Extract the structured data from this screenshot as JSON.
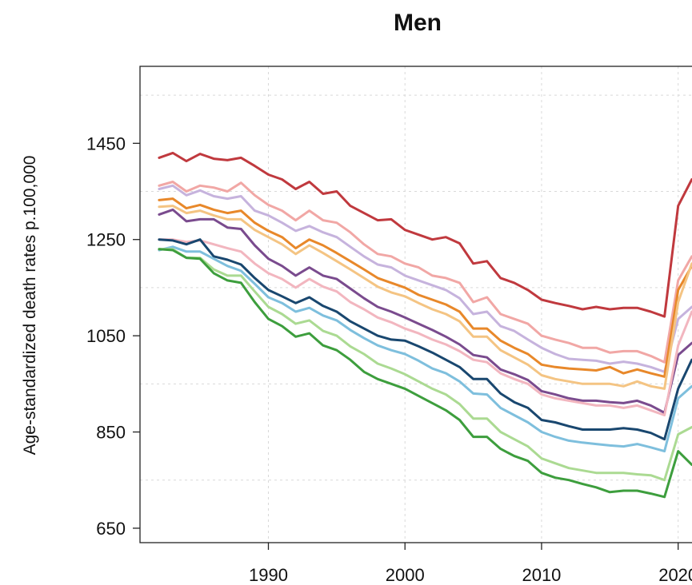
{
  "chart_data": {
    "type": "line",
    "title": "Men",
    "xlabel": "",
    "ylabel": "Age-standardized death rates p.100,000",
    "xlim": [
      1980.6,
      2021.6
    ],
    "ylim": [
      620,
      1610
    ],
    "xticks": [
      1990,
      2000,
      2010,
      2020
    ],
    "yticks": [
      650,
      850,
      1050,
      1250,
      1450
    ],
    "xtick_labels": [
      "1990",
      "2000",
      "2010",
      "2020"
    ],
    "ytick_labels": [
      "650",
      "850",
      "1050",
      "1250",
      "1450"
    ],
    "grid": true,
    "x": [
      1982,
      1983,
      1984,
      1985,
      1986,
      1987,
      1988,
      1989,
      1990,
      1991,
      1992,
      1993,
      1994,
      1995,
      1996,
      1997,
      1998,
      1999,
      2000,
      2001,
      2002,
      2003,
      2004,
      2005,
      2006,
      2007,
      2008,
      2009,
      2010,
      2011,
      2012,
      2013,
      2014,
      2015,
      2016,
      2017,
      2018,
      2019,
      2020,
      2021
    ],
    "series": [
      {
        "color": "#c0393e",
        "values": [
          1420,
          1430,
          1413,
          1428,
          1418,
          1415,
          1420,
          1403,
          1385,
          1375,
          1355,
          1370,
          1345,
          1350,
          1320,
          1305,
          1290,
          1292,
          1270,
          1260,
          1250,
          1255,
          1242,
          1200,
          1205,
          1170,
          1160,
          1145,
          1125,
          1118,
          1112,
          1105,
          1110,
          1105,
          1108,
          1108,
          1100,
          1090,
          1320,
          1375
        ]
      },
      {
        "color": "#f1a7a5",
        "values": [
          1362,
          1370,
          1350,
          1362,
          1358,
          1350,
          1368,
          1342,
          1322,
          1310,
          1290,
          1310,
          1290,
          1285,
          1265,
          1240,
          1220,
          1215,
          1200,
          1192,
          1175,
          1170,
          1160,
          1120,
          1130,
          1095,
          1085,
          1075,
          1050,
          1042,
          1035,
          1025,
          1025,
          1015,
          1018,
          1018,
          1008,
          995,
          1165,
          1215
        ]
      },
      {
        "color": "#c6b3dd",
        "values": [
          1355,
          1362,
          1342,
          1352,
          1340,
          1335,
          1340,
          1310,
          1300,
          1285,
          1268,
          1278,
          1265,
          1255,
          1235,
          1215,
          1198,
          1192,
          1175,
          1165,
          1155,
          1145,
          1128,
          1095,
          1100,
          1070,
          1060,
          1042,
          1025,
          1012,
          1002,
          1000,
          998,
          992,
          996,
          992,
          985,
          975,
          1085,
          1110
        ]
      },
      {
        "color": "#e8882a",
        "values": [
          1332,
          1335,
          1315,
          1322,
          1312,
          1305,
          1310,
          1285,
          1268,
          1255,
          1232,
          1250,
          1238,
          1222,
          1205,
          1188,
          1170,
          1160,
          1150,
          1135,
          1125,
          1115,
          1100,
          1065,
          1065,
          1040,
          1025,
          1012,
          990,
          985,
          982,
          980,
          978,
          985,
          972,
          980,
          972,
          965,
          1145,
          1195
        ]
      },
      {
        "color": "#f4c483",
        "values": [
          1318,
          1320,
          1305,
          1310,
          1300,
          1292,
          1292,
          1270,
          1255,
          1240,
          1220,
          1238,
          1222,
          1205,
          1188,
          1170,
          1152,
          1140,
          1132,
          1118,
          1105,
          1095,
          1080,
          1048,
          1048,
          1020,
          1005,
          990,
          968,
          960,
          955,
          950,
          950,
          950,
          945,
          955,
          945,
          940,
          1120,
          1200
        ]
      },
      {
        "color": "#7a4b8e",
        "values": [
          1302,
          1312,
          1288,
          1292,
          1292,
          1275,
          1272,
          1238,
          1210,
          1195,
          1175,
          1192,
          1175,
          1168,
          1148,
          1128,
          1110,
          1100,
          1088,
          1075,
          1062,
          1048,
          1032,
          1010,
          1005,
          980,
          970,
          958,
          935,
          928,
          920,
          915,
          915,
          912,
          910,
          915,
          905,
          890,
          1010,
          1035
        ]
      },
      {
        "color": "#f2b6bf",
        "values": [
          1250,
          1250,
          1245,
          1248,
          1240,
          1232,
          1225,
          1200,
          1180,
          1168,
          1150,
          1168,
          1152,
          1142,
          1120,
          1105,
          1088,
          1078,
          1065,
          1055,
          1042,
          1032,
          1018,
          1000,
          995,
          972,
          960,
          950,
          928,
          920,
          915,
          910,
          905,
          905,
          900,
          905,
          895,
          885,
          1030,
          1100
        ]
      },
      {
        "color": "#19476f",
        "values": [
          1250,
          1248,
          1240,
          1250,
          1215,
          1208,
          1198,
          1170,
          1145,
          1132,
          1118,
          1130,
          1112,
          1100,
          1080,
          1065,
          1050,
          1042,
          1040,
          1028,
          1015,
          1000,
          985,
          960,
          960,
          930,
          912,
          900,
          875,
          870,
          862,
          855,
          855,
          855,
          858,
          855,
          848,
          835,
          940,
          1000
        ]
      },
      {
        "color": "#7ebfdd",
        "values": [
          1228,
          1235,
          1225,
          1225,
          1210,
          1195,
          1185,
          1158,
          1130,
          1118,
          1100,
          1108,
          1092,
          1082,
          1062,
          1045,
          1030,
          1020,
          1012,
          998,
          982,
          972,
          955,
          930,
          928,
          900,
          885,
          870,
          850,
          840,
          832,
          828,
          825,
          822,
          820,
          825,
          818,
          810,
          920,
          945
        ]
      },
      {
        "color": "#abda92",
        "values": [
          1230,
          1230,
          1212,
          1212,
          1188,
          1175,
          1175,
          1142,
          1110,
          1095,
          1075,
          1082,
          1060,
          1050,
          1028,
          1012,
          992,
          982,
          970,
          955,
          940,
          928,
          908,
          878,
          878,
          850,
          835,
          820,
          795,
          785,
          775,
          770,
          765,
          765,
          765,
          762,
          760,
          750,
          845,
          860
        ]
      },
      {
        "color": "#3d9e3d",
        "values": [
          1230,
          1228,
          1212,
          1210,
          1180,
          1165,
          1160,
          1120,
          1085,
          1070,
          1048,
          1055,
          1030,
          1020,
          1000,
          975,
          960,
          950,
          940,
          925,
          910,
          895,
          875,
          840,
          840,
          815,
          800,
          790,
          765,
          755,
          750,
          742,
          735,
          725,
          728,
          728,
          722,
          715,
          810,
          782
        ]
      }
    ]
  }
}
